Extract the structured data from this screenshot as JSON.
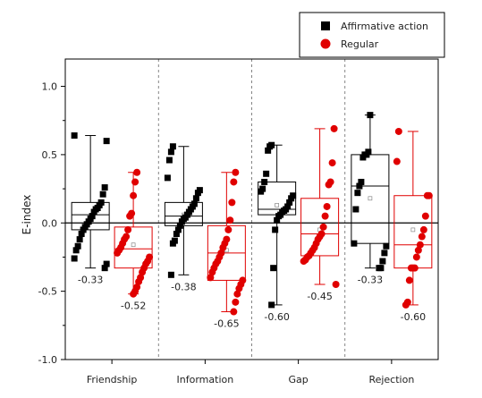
{
  "chart_data": {
    "type": "box-scatter",
    "ylabel": "E-index",
    "ylim": [
      -1.0,
      1.2
    ],
    "yticks": [
      -1.0,
      -0.5,
      0.0,
      0.5,
      1.0
    ],
    "ytick_labels": [
      "-1.0",
      "-0.5",
      "0.0",
      "0.5",
      "1.0"
    ],
    "categories": [
      "Friendship",
      "Information",
      "Gap",
      "Rejection"
    ],
    "legend": {
      "position": "top-right",
      "entries": [
        {
          "name": "Affirmative action",
          "color": "#000000",
          "marker": "square"
        },
        {
          "name": "Regular",
          "color": "#e00000",
          "marker": "circle"
        }
      ]
    },
    "reference_line": 0.0,
    "groups": [
      {
        "category": "Friendship",
        "series": "Affirmative action",
        "color": "#000000",
        "box": {
          "q1": -0.05,
          "median": 0.06,
          "q3": 0.15,
          "whisker_low": -0.33,
          "whisker_high": 0.64,
          "mean": 0.04
        },
        "label": "-0.33",
        "points": [
          0.64,
          0.6,
          0.26,
          0.21,
          0.15,
          0.13,
          0.11,
          0.1,
          0.08,
          0.05,
          0.03,
          0.01,
          -0.01,
          -0.03,
          -0.05,
          -0.08,
          -0.12,
          -0.17,
          -0.2,
          -0.26,
          -0.3,
          -0.33
        ]
      },
      {
        "category": "Friendship",
        "series": "Regular",
        "color": "#e00000",
        "box": {
          "q1": -0.33,
          "median": -0.19,
          "q3": -0.03,
          "whisker_low": -0.52,
          "whisker_high": 0.37,
          "mean": -0.16
        },
        "label": "-0.52",
        "points": [
          0.37,
          0.3,
          0.2,
          0.07,
          0.05,
          -0.05,
          -0.1,
          -0.12,
          -0.15,
          -0.18,
          -0.2,
          -0.22,
          -0.25,
          -0.28,
          -0.3,
          -0.33,
          -0.36,
          -0.4,
          -0.43,
          -0.47,
          -0.5,
          -0.52
        ]
      },
      {
        "category": "Information",
        "series": "Affirmative action",
        "color": "#000000",
        "box": {
          "q1": -0.02,
          "median": 0.05,
          "q3": 0.15,
          "whisker_low": -0.38,
          "whisker_high": 0.56,
          "mean": 0.06
        },
        "label": "-0.38",
        "points": [
          0.56,
          0.52,
          0.46,
          0.33,
          0.24,
          0.22,
          0.18,
          0.14,
          0.12,
          0.1,
          0.08,
          0.06,
          0.04,
          0.03,
          0.01,
          -0.02,
          -0.05,
          -0.08,
          -0.13,
          -0.15,
          -0.38
        ]
      },
      {
        "category": "Information",
        "series": "Regular",
        "color": "#e00000",
        "box": {
          "q1": -0.42,
          "median": -0.22,
          "q3": -0.02,
          "whisker_low": -0.65,
          "whisker_high": 0.37,
          "mean": -0.2
        },
        "label": "-0.65",
        "points": [
          0.37,
          0.3,
          0.15,
          0.02,
          -0.05,
          -0.12,
          -0.15,
          -0.18,
          -0.22,
          -0.25,
          -0.28,
          -0.3,
          -0.33,
          -0.36,
          -0.4,
          -0.42,
          -0.45,
          -0.48,
          -0.52,
          -0.58,
          -0.65
        ]
      },
      {
        "category": "Gap",
        "series": "Affirmative action",
        "color": "#000000",
        "box": {
          "q1": 0.06,
          "median": 0.1,
          "q3": 0.3,
          "whisker_low": -0.6,
          "whisker_high": 0.57,
          "mean": 0.13
        },
        "label": "-0.60",
        "points": [
          0.57,
          0.56,
          0.53,
          0.36,
          0.3,
          0.25,
          0.23,
          0.2,
          0.18,
          0.15,
          0.12,
          0.1,
          0.09,
          0.08,
          0.06,
          0.05,
          0.02,
          -0.05,
          -0.33,
          -0.6
        ]
      },
      {
        "category": "Gap",
        "series": "Regular",
        "color": "#e00000",
        "box": {
          "q1": -0.24,
          "median": -0.08,
          "q3": 0.18,
          "whisker_low": -0.45,
          "whisker_high": 0.69,
          "mean": -0.05
        },
        "label": "-0.45",
        "points": [
          0.69,
          0.44,
          0.3,
          0.28,
          0.12,
          0.05,
          -0.03,
          -0.08,
          -0.1,
          -0.12,
          -0.15,
          -0.18,
          -0.2,
          -0.22,
          -0.24,
          -0.25,
          -0.27,
          -0.28,
          -0.45
        ]
      },
      {
        "category": "Rejection",
        "series": "Affirmative action",
        "color": "#000000",
        "box": {
          "q1": -0.15,
          "median": 0.27,
          "q3": 0.5,
          "whisker_low": -0.33,
          "whisker_high": 0.79,
          "mean": 0.18
        },
        "label": "-0.33",
        "points": [
          0.79,
          0.52,
          0.5,
          0.5,
          0.48,
          0.3,
          0.27,
          0.22,
          0.1,
          -0.15,
          -0.17,
          -0.22,
          -0.28,
          -0.33,
          -0.33
        ]
      },
      {
        "category": "Rejection",
        "series": "Regular",
        "color": "#e00000",
        "box": {
          "q1": -0.33,
          "median": -0.16,
          "q3": 0.2,
          "whisker_low": -0.6,
          "whisker_high": 0.67,
          "mean": -0.05
        },
        "label": "-0.60",
        "points": [
          0.67,
          0.45,
          0.2,
          0.2,
          0.05,
          -0.05,
          -0.1,
          -0.16,
          -0.2,
          -0.25,
          -0.33,
          -0.33,
          -0.33,
          -0.42,
          -0.58,
          -0.6
        ]
      }
    ]
  }
}
